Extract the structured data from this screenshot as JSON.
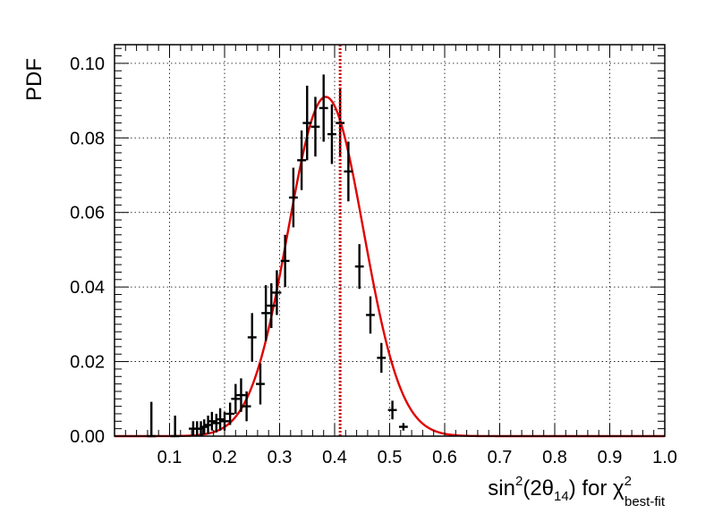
{
  "chart_data": {
    "type": "histogram-with-fit",
    "ylabel": "PDF",
    "xlabel": {
      "base": "sin",
      "sup1": "2",
      "open": "(2θ",
      "sub1": "14",
      "close": ") for χ",
      "sup2": "2",
      "sub2": "best-fit"
    },
    "xlim": [
      0.0,
      1.0
    ],
    "ylim": [
      0.0,
      0.105
    ],
    "xticks": [
      "0.1",
      "0.2",
      "0.3",
      "0.4",
      "0.5",
      "0.6",
      "0.7",
      "0.8",
      "0.9",
      "1.0"
    ],
    "xtick_values": [
      0.1,
      0.2,
      0.3,
      0.4,
      0.5,
      0.6,
      0.7,
      0.8,
      0.9,
      1.0
    ],
    "yticks": [
      "0.00",
      "0.02",
      "0.04",
      "0.06",
      "0.08",
      "0.10"
    ],
    "ytick_values": [
      0.0,
      0.02,
      0.04,
      0.06,
      0.08,
      0.1
    ],
    "grid": true,
    "bin_half_width": 0.008,
    "points": [
      {
        "x": 0.067,
        "y": 0.0,
        "err": 0.0092
      },
      {
        "x": 0.11,
        "y": 0.0,
        "err": 0.0055
      },
      {
        "x": 0.143,
        "y": 0.002,
        "err": 0.002
      },
      {
        "x": 0.15,
        "y": 0.002,
        "err": 0.002
      },
      {
        "x": 0.157,
        "y": 0.002,
        "err": 0.002
      },
      {
        "x": 0.163,
        "y": 0.0025,
        "err": 0.002
      },
      {
        "x": 0.17,
        "y": 0.003,
        "err": 0.0025
      },
      {
        "x": 0.177,
        "y": 0.004,
        "err": 0.0025
      },
      {
        "x": 0.185,
        "y": 0.0035,
        "err": 0.0025
      },
      {
        "x": 0.192,
        "y": 0.0045,
        "err": 0.003
      },
      {
        "x": 0.2,
        "y": 0.004,
        "err": 0.0025
      },
      {
        "x": 0.21,
        "y": 0.006,
        "err": 0.003
      },
      {
        "x": 0.22,
        "y": 0.01,
        "err": 0.004
      },
      {
        "x": 0.23,
        "y": 0.011,
        "err": 0.0045
      },
      {
        "x": 0.24,
        "y": 0.008,
        "err": 0.004
      },
      {
        "x": 0.25,
        "y": 0.0265,
        "err": 0.0065
      },
      {
        "x": 0.265,
        "y": 0.014,
        "err": 0.0055
      },
      {
        "x": 0.275,
        "y": 0.033,
        "err": 0.0075
      },
      {
        "x": 0.285,
        "y": 0.035,
        "err": 0.006
      },
      {
        "x": 0.295,
        "y": 0.0385,
        "err": 0.006
      },
      {
        "x": 0.31,
        "y": 0.047,
        "err": 0.007
      },
      {
        "x": 0.325,
        "y": 0.064,
        "err": 0.008
      },
      {
        "x": 0.34,
        "y": 0.074,
        "err": 0.008
      },
      {
        "x": 0.35,
        "y": 0.084,
        "err": 0.01
      },
      {
        "x": 0.365,
        "y": 0.083,
        "err": 0.008
      },
      {
        "x": 0.38,
        "y": 0.088,
        "err": 0.009
      },
      {
        "x": 0.395,
        "y": 0.081,
        "err": 0.008
      },
      {
        "x": 0.41,
        "y": 0.084,
        "err": 0.009
      },
      {
        "x": 0.425,
        "y": 0.071,
        "err": 0.008
      },
      {
        "x": 0.445,
        "y": 0.0455,
        "err": 0.006
      },
      {
        "x": 0.465,
        "y": 0.0325,
        "err": 0.005
      },
      {
        "x": 0.485,
        "y": 0.021,
        "err": 0.004
      },
      {
        "x": 0.505,
        "y": 0.007,
        "err": 0.0025
      },
      {
        "x": 0.525,
        "y": 0.0025,
        "err": 0.001
      }
    ],
    "fit": {
      "type": "gaussian",
      "amplitude": 0.091,
      "mean": 0.384,
      "sigma": 0.0685,
      "x_range": [
        0.0,
        1.0
      ],
      "color": "#e00000"
    },
    "best_fit_line": {
      "x": 0.41,
      "color": "#cc0000",
      "style": "dotted"
    },
    "marker_color": "#000000"
  }
}
